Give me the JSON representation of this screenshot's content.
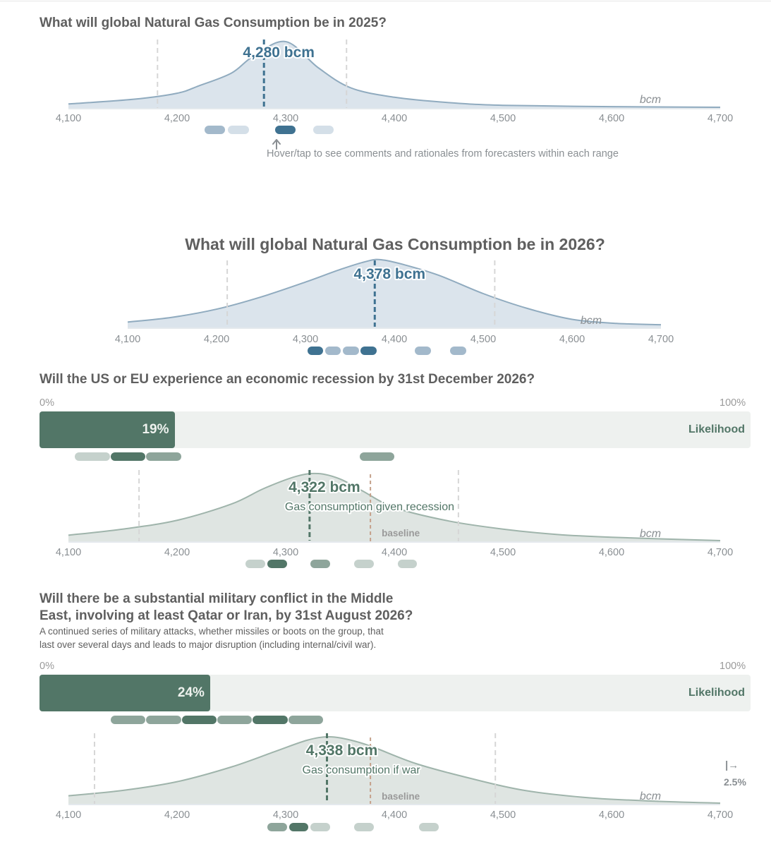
{
  "q1": {
    "title": "What will global Natural Gas Consumption be in 2025?",
    "hint": "Hover/tap to see comments and rationales from forecasters within each range"
  },
  "q2": {
    "title": "What will global Natural Gas Consumption be in 2026?"
  },
  "q3": {
    "title": "Will the US or EU experience an economic recession by 31st December 2026?",
    "pct_min": "0%",
    "pct_max": "100%",
    "likelihood_label": "Likelihood"
  },
  "q4": {
    "title_line1": "Will there be a substantial military conflict in the Middle",
    "title_line2": "East, involving at least Qatar or Iran, by 31st August 2026?",
    "desc_line1": "A continued series of military attacks, whether missiles or boots on the group, that",
    "desc_line2": "last over several days and leads to major disruption (including internal/civil war).",
    "pct_min": "0%",
    "pct_max": "100%",
    "likelihood_label": "Likelihood",
    "offscale_icon": "|→",
    "offscale_value": "2.5%"
  },
  "chart_data": [
    {
      "type": "area",
      "id": "c1",
      "title": "What will global Natural Gas Consumption be in 2025?",
      "unit": "bcm",
      "value_label": "4,280 bcm",
      "median": 4280,
      "interval": [
        4182,
        4356
      ],
      "x": [
        4100,
        4160,
        4200,
        4220,
        4250,
        4270,
        4300,
        4330,
        4360,
        4400,
        4450,
        4500,
        4600,
        4700
      ],
      "density": [
        0.06,
        0.13,
        0.22,
        0.33,
        0.52,
        0.77,
        0.99,
        0.6,
        0.3,
        0.16,
        0.08,
        0.04,
        0.02,
        0.01
      ],
      "xlim": [
        4100,
        4700
      ],
      "ticks": [
        4100,
        4200,
        4300,
        4400,
        4500,
        4600,
        4700
      ],
      "tick_labels": [
        "4,100",
        "4,200",
        "4,300",
        "4,400",
        "4,500",
        "4,600",
        "4,700"
      ],
      "line_color": "#90abbf",
      "fill_color": "#dbe4ec",
      "median_color": "#3f7291",
      "comment_ranges": [
        {
          "from": 4225,
          "to": 4244,
          "shade": 2
        },
        {
          "from": 4247,
          "to": 4266,
          "shade": 1
        },
        {
          "from": 4290,
          "to": 4309,
          "shade": 3
        },
        {
          "from": 4325,
          "to": 4344,
          "shade": 1
        }
      ]
    },
    {
      "type": "area",
      "id": "c2",
      "title": "What will global Natural Gas Consumption be in 2026?",
      "unit": "bcm",
      "value_label": "4,378 bcm",
      "median": 4378,
      "interval": [
        4212,
        4513
      ],
      "x": [
        4100,
        4150,
        4200,
        4250,
        4300,
        4340,
        4370,
        4385,
        4410,
        4450,
        4500,
        4550,
        4600,
        4650,
        4700
      ],
      "density": [
        0.08,
        0.15,
        0.27,
        0.45,
        0.67,
        0.86,
        0.98,
        1.0,
        0.93,
        0.77,
        0.5,
        0.28,
        0.12,
        0.06,
        0.04
      ],
      "xlim": [
        4100,
        4700
      ],
      "ticks": [
        4100,
        4200,
        4300,
        4400,
        4500,
        4600,
        4700
      ],
      "tick_labels": [
        "4,100",
        "4,200",
        "4,300",
        "4,400",
        "4,500",
        "4,600",
        "4,700"
      ],
      "line_color": "#90abbf",
      "fill_color": "#dbe4ec",
      "median_color": "#3f7291",
      "comment_ranges": [
        {
          "from": 4302,
          "to": 4320,
          "shade": 3
        },
        {
          "from": 4322,
          "to": 4340,
          "shade": 2
        },
        {
          "from": 4342,
          "to": 4360,
          "shade": 2
        },
        {
          "from": 4362,
          "to": 4380,
          "shade": 3
        },
        {
          "from": 4423,
          "to": 4441,
          "shade": 2
        },
        {
          "from": 4463,
          "to": 4481,
          "shade": 2
        }
      ]
    },
    {
      "type": "bar",
      "id": "b1",
      "title": "Will the US or EU experience an economic recession by 31st December 2026?",
      "categories": [
        "Likelihood"
      ],
      "values": [
        19
      ],
      "value_label": "19%",
      "xlim": [
        0,
        100
      ],
      "comment_ranges": [
        {
          "from": 5,
          "to": 9.9,
          "shade": 1
        },
        {
          "from": 10,
          "to": 14.9,
          "shade": 3
        },
        {
          "from": 15,
          "to": 19.9,
          "shade": 2
        },
        {
          "from": 45,
          "to": 49.9,
          "shade": 2
        }
      ]
    },
    {
      "type": "area",
      "id": "c3",
      "unit": "bcm",
      "value_label": "4,322 bcm",
      "sublabel": "Gas consumption given recession",
      "baseline_label": "baseline",
      "baseline": 4378,
      "median": 4322,
      "interval": [
        4165,
        4459
      ],
      "x": [
        4100,
        4150,
        4200,
        4250,
        4280,
        4310,
        4330,
        4350,
        4370,
        4400,
        4450,
        4500,
        4550,
        4600,
        4700
      ],
      "density": [
        0.09,
        0.18,
        0.31,
        0.55,
        0.78,
        0.96,
        1.0,
        0.92,
        0.75,
        0.5,
        0.3,
        0.18,
        0.1,
        0.06,
        0.01
      ],
      "xlim": [
        4100,
        4700
      ],
      "ticks": [
        4100,
        4200,
        4300,
        4400,
        4500,
        4600,
        4700
      ],
      "tick_labels": [
        "4,100",
        "4,200",
        "4,300",
        "4,400",
        "4,500",
        "4,600",
        "4,700"
      ],
      "line_color": "#9fb4ab",
      "fill_color": "#dfe5e2",
      "median_color": "#527667",
      "baseline_color": "#c4a08a",
      "comment_ranges": [
        {
          "from": 4263,
          "to": 4281,
          "shade": 1
        },
        {
          "from": 4283,
          "to": 4301,
          "shade": 3
        },
        {
          "from": 4323,
          "to": 4341,
          "shade": 2
        },
        {
          "from": 4363,
          "to": 4381,
          "shade": 1
        },
        {
          "from": 4403,
          "to": 4421,
          "shade": 1
        }
      ]
    },
    {
      "type": "bar",
      "id": "b2",
      "title": "Will there be a substantial military conflict in the Middle East, involving at least Qatar or Iran, by 31st August 2026?",
      "categories": [
        "Likelihood"
      ],
      "values": [
        24
      ],
      "value_label": "24%",
      "xlim": [
        0,
        100
      ],
      "comment_ranges": [
        {
          "from": 10,
          "to": 14.9,
          "shade": 2
        },
        {
          "from": 15,
          "to": 19.9,
          "shade": 2
        },
        {
          "from": 20,
          "to": 24.9,
          "shade": 3
        },
        {
          "from": 25,
          "to": 29.9,
          "shade": 2
        },
        {
          "from": 30,
          "to": 34.9,
          "shade": 3
        },
        {
          "from": 35,
          "to": 39.9,
          "shade": 2
        }
      ]
    },
    {
      "type": "area",
      "id": "c4",
      "unit": "bcm",
      "value_label": "4,338 bcm",
      "sublabel": "Gas consumption if war",
      "baseline_label": "baseline",
      "baseline": 4378,
      "median": 4338,
      "interval": [
        4124,
        4493
      ],
      "x": [
        4100,
        4150,
        4200,
        4250,
        4290,
        4320,
        4340,
        4360,
        4380,
        4420,
        4470,
        4520,
        4580,
        4640,
        4700
      ],
      "density": [
        0.12,
        0.2,
        0.33,
        0.55,
        0.78,
        0.95,
        1.0,
        0.95,
        0.85,
        0.6,
        0.38,
        0.2,
        0.09,
        0.04,
        0.01
      ],
      "xlim": [
        4100,
        4700
      ],
      "ticks": [
        4100,
        4200,
        4300,
        4400,
        4500,
        4600,
        4700
      ],
      "tick_labels": [
        "4,100",
        "4,200",
        "4,300",
        "4,400",
        "4,500",
        "4,600",
        "4,700"
      ],
      "line_color": "#9fb4ab",
      "fill_color": "#dfe5e2",
      "median_color": "#527667",
      "baseline_color": "#c4a08a",
      "comment_ranges": [
        {
          "from": 4283,
          "to": 4301,
          "shade": 2
        },
        {
          "from": 4303,
          "to": 4321,
          "shade": 3
        },
        {
          "from": 4323,
          "to": 4341,
          "shade": 1
        },
        {
          "from": 4363,
          "to": 4381,
          "shade": 1
        },
        {
          "from": 4423,
          "to": 4441,
          "shade": 1
        }
      ]
    }
  ]
}
